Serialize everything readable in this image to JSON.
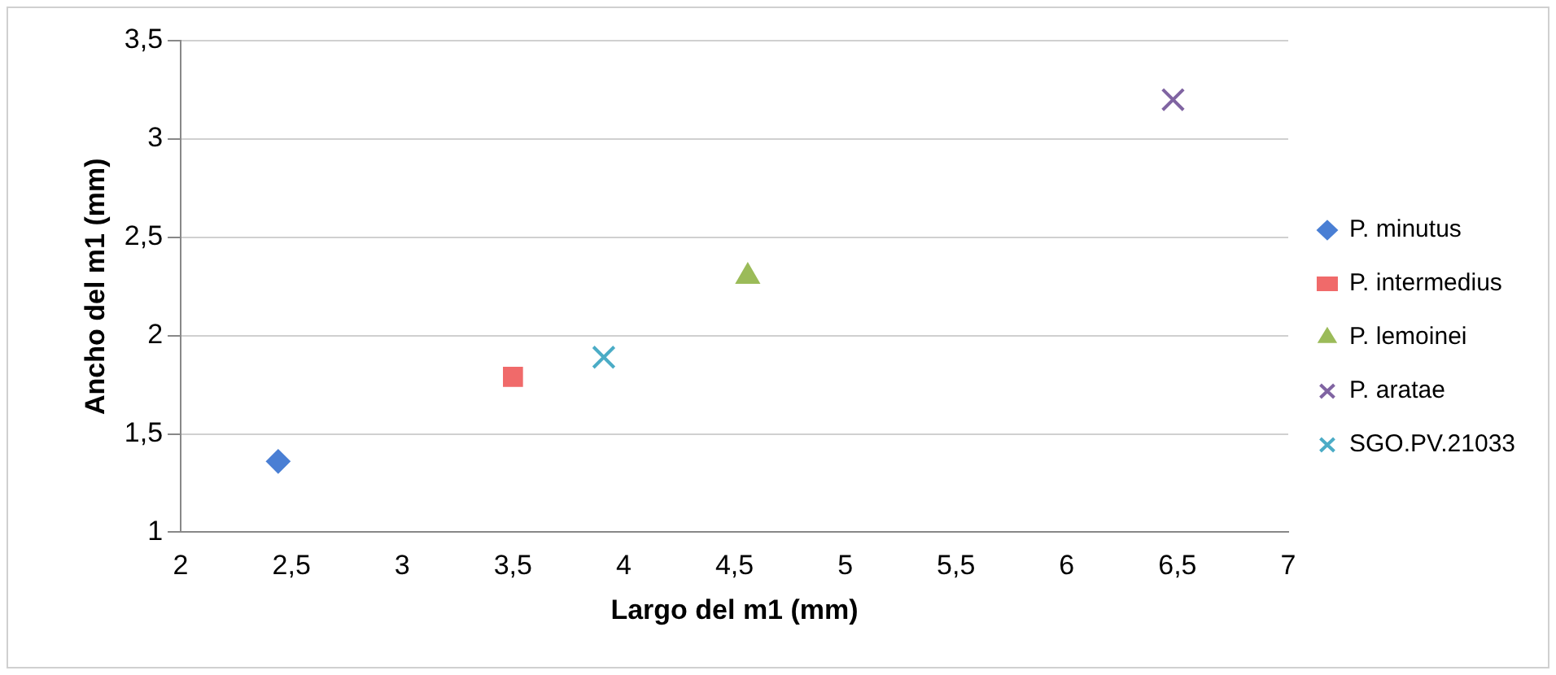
{
  "chart_data": {
    "type": "scatter",
    "xlabel": "Largo del m1 (mm)",
    "ylabel": "Ancho del m1 (mm)",
    "xlim": [
      2,
      7
    ],
    "ylim": [
      1,
      3.5
    ],
    "xticks": [
      2,
      {
        "value": 2.5,
        "label": "2,5"
      },
      3,
      {
        "value": 3.5,
        "label": "3,5"
      },
      4,
      {
        "value": 4.5,
        "label": "4,5"
      },
      5,
      {
        "value": 5.5,
        "label": "5,5"
      },
      6,
      {
        "value": 6.5,
        "label": "6,5"
      },
      7
    ],
    "yticks": [
      1,
      {
        "value": 1.5,
        "label": "1,5"
      },
      2,
      {
        "value": 2.5,
        "label": "2,5"
      },
      3,
      {
        "value": 3.5,
        "label": "3,5"
      }
    ],
    "grid": "y",
    "legend": "right",
    "series": [
      {
        "name": "P. minutus",
        "color": "#4a7fd4",
        "marker": "diamond",
        "x": [
          2.44
        ],
        "values": [
          1.36
        ]
      },
      {
        "name": "P. intermedius",
        "color": "#f06a6a",
        "marker": "square",
        "x": [
          3.5
        ],
        "values": [
          1.79
        ]
      },
      {
        "name": "P. lemoinei",
        "color": "#9bbb59",
        "marker": "triangle",
        "x": [
          4.56
        ],
        "values": [
          2.3
        ]
      },
      {
        "name": "P. aratae",
        "color": "#8064a2",
        "marker": "cross",
        "x": [
          6.48
        ],
        "values": [
          3.2
        ]
      },
      {
        "name": "SGO.PV.21033",
        "color": "#4bacc6",
        "marker": "cross",
        "x": [
          3.91
        ],
        "values": [
          1.89
        ]
      }
    ]
  }
}
